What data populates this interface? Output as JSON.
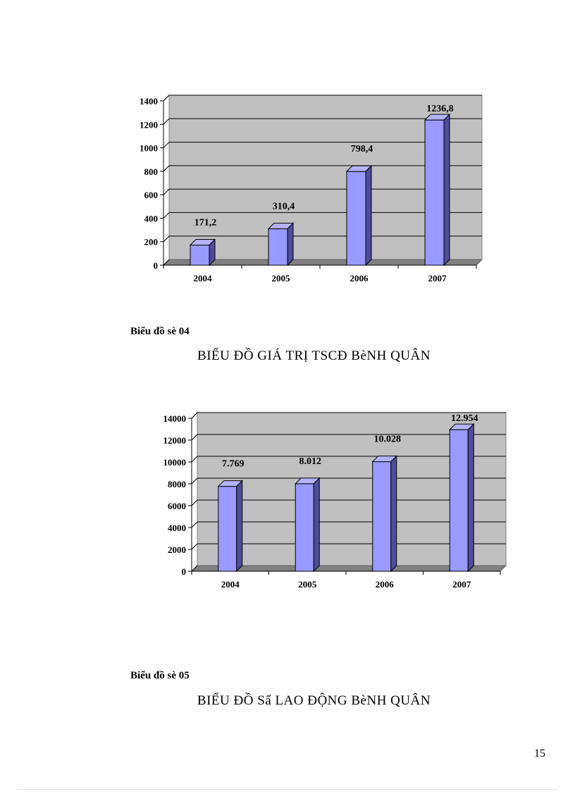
{
  "charts": [
    {
      "caption": "Biểu đồ sè 04",
      "title": "BIỂU ĐỒ GIÁ TRỊ TSCĐ BèNH QUÂN",
      "chart_data": {
        "type": "bar",
        "categories": [
          "2004",
          "2005",
          "2006",
          "2007"
        ],
        "values": [
          171.2,
          310.4,
          798.4,
          1236.8
        ],
        "data_labels": [
          "171,2",
          "310,4",
          "798,4",
          "1236,8"
        ],
        "yticks": [
          "0",
          "200",
          "400",
          "600",
          "800",
          "1000",
          "1200",
          "1400"
        ],
        "ylim": [
          0,
          1400
        ],
        "grid": true,
        "bar_color": "#9999ff",
        "wall_color": "#c0c0c0"
      }
    },
    {
      "caption": "Biểu đồ sè 05",
      "title": "BIỂU ĐỒ Sẩ LAO ĐỘNG BèNH QUÂN",
      "chart_data": {
        "type": "bar",
        "categories": [
          "2004",
          "2005",
          "2006",
          "2007"
        ],
        "values": [
          7769,
          8012,
          10028,
          12954
        ],
        "data_labels": [
          "7.769",
          "8.012",
          "10.028",
          "12.954"
        ],
        "yticks": [
          "0",
          "2000",
          "4000",
          "6000",
          "8000",
          "10000",
          "12000",
          "14000"
        ],
        "ylim": [
          0,
          14000
        ],
        "grid": true,
        "bar_color": "#9999ff",
        "wall_color": "#c0c0c0"
      }
    }
  ],
  "page_number": "15"
}
